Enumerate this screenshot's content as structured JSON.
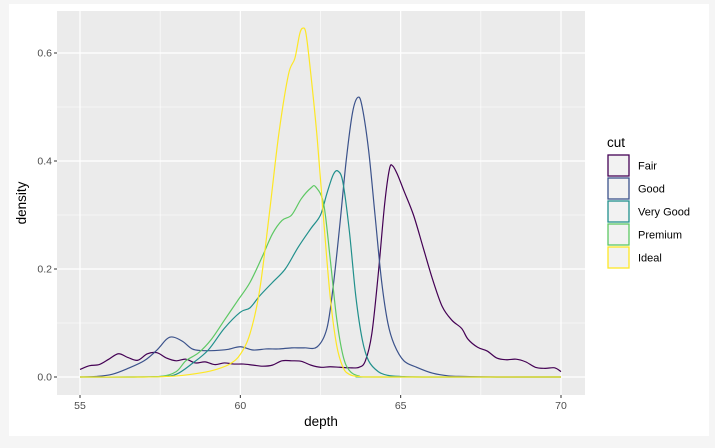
{
  "chart_data": {
    "type": "line",
    "subtype": "density",
    "title": "",
    "xlabel": "depth",
    "ylabel": "density",
    "xlim": [
      54.2,
      70.7
    ],
    "ylim": [
      -0.034,
      0.68
    ],
    "x_ticks": [
      55,
      60,
      65,
      70
    ],
    "x_tick_labels": [
      "55",
      "60",
      "65",
      "70"
    ],
    "y_ticks": [
      0.0,
      0.2,
      0.4,
      0.6
    ],
    "y_tick_labels": [
      "0.0",
      "0.2",
      "0.4",
      "0.6"
    ],
    "x_minor_ticks": [
      57.5,
      62.5,
      67.5
    ],
    "y_minor_ticks": [
      0.1,
      0.3,
      0.5
    ],
    "grid": true,
    "legend_position": "right",
    "legend_title": "cut",
    "series": [
      {
        "name": "Fair",
        "color": "#440154",
        "points": [
          [
            55.0,
            0.014
          ],
          [
            55.3,
            0.021
          ],
          [
            55.6,
            0.023
          ],
          [
            55.9,
            0.033
          ],
          [
            56.2,
            0.043
          ],
          [
            56.5,
            0.036
          ],
          [
            56.8,
            0.031
          ],
          [
            57.1,
            0.043
          ],
          [
            57.4,
            0.045
          ],
          [
            57.7,
            0.035
          ],
          [
            58.0,
            0.03
          ],
          [
            58.3,
            0.033
          ],
          [
            58.6,
            0.026
          ],
          [
            58.9,
            0.028
          ],
          [
            59.2,
            0.023
          ],
          [
            59.5,
            0.026
          ],
          [
            59.8,
            0.024
          ],
          [
            60.1,
            0.024
          ],
          [
            60.4,
            0.022
          ],
          [
            60.7,
            0.02
          ],
          [
            61.0,
            0.022
          ],
          [
            61.3,
            0.03
          ],
          [
            61.6,
            0.03
          ],
          [
            61.9,
            0.029
          ],
          [
            62.2,
            0.022
          ],
          [
            62.5,
            0.018
          ],
          [
            62.8,
            0.019
          ],
          [
            63.1,
            0.018
          ],
          [
            63.4,
            0.017
          ],
          [
            63.7,
            0.018
          ],
          [
            63.9,
            0.03
          ],
          [
            64.1,
            0.08
          ],
          [
            64.3,
            0.19
          ],
          [
            64.5,
            0.32
          ],
          [
            64.65,
            0.385
          ],
          [
            64.75,
            0.391
          ],
          [
            64.9,
            0.375
          ],
          [
            65.1,
            0.345
          ],
          [
            65.4,
            0.3
          ],
          [
            65.7,
            0.24
          ],
          [
            66.0,
            0.18
          ],
          [
            66.3,
            0.13
          ],
          [
            66.6,
            0.105
          ],
          [
            66.9,
            0.09
          ],
          [
            67.1,
            0.07
          ],
          [
            67.4,
            0.055
          ],
          [
            67.7,
            0.048
          ],
          [
            68.0,
            0.035
          ],
          [
            68.3,
            0.032
          ],
          [
            68.6,
            0.033
          ],
          [
            68.9,
            0.028
          ],
          [
            69.2,
            0.018
          ],
          [
            69.5,
            0.016
          ],
          [
            69.8,
            0.017
          ],
          [
            70.0,
            0.01
          ]
        ]
      },
      {
        "name": "Good",
        "color": "#3B528B",
        "points": [
          [
            55.0,
            0.0
          ],
          [
            55.5,
            0.001
          ],
          [
            56.0,
            0.005
          ],
          [
            56.5,
            0.016
          ],
          [
            57.0,
            0.03
          ],
          [
            57.4,
            0.05
          ],
          [
            57.7,
            0.07
          ],
          [
            57.9,
            0.074
          ],
          [
            58.2,
            0.066
          ],
          [
            58.5,
            0.052
          ],
          [
            58.8,
            0.049
          ],
          [
            59.2,
            0.049
          ],
          [
            59.6,
            0.051
          ],
          [
            60.0,
            0.056
          ],
          [
            60.4,
            0.05
          ],
          [
            60.8,
            0.052
          ],
          [
            61.2,
            0.052
          ],
          [
            61.6,
            0.054
          ],
          [
            62.0,
            0.054
          ],
          [
            62.4,
            0.056
          ],
          [
            62.7,
            0.09
          ],
          [
            62.9,
            0.17
          ],
          [
            63.1,
            0.28
          ],
          [
            63.3,
            0.4
          ],
          [
            63.5,
            0.49
          ],
          [
            63.67,
            0.518
          ],
          [
            63.8,
            0.5
          ],
          [
            64.0,
            0.42
          ],
          [
            64.2,
            0.3
          ],
          [
            64.4,
            0.18
          ],
          [
            64.6,
            0.1
          ],
          [
            64.8,
            0.06
          ],
          [
            65.1,
            0.03
          ],
          [
            65.5,
            0.018
          ],
          [
            66.0,
            0.007
          ],
          [
            66.5,
            0.002
          ],
          [
            67.0,
            0.001
          ],
          [
            68.0,
            0.0
          ],
          [
            70.0,
            0.0
          ]
        ]
      },
      {
        "name": "Very Good",
        "color": "#21908C",
        "points": [
          [
            55.0,
            0.0
          ],
          [
            56.5,
            0.0
          ],
          [
            57.5,
            0.001
          ],
          [
            58.0,
            0.005
          ],
          [
            58.5,
            0.025
          ],
          [
            59.0,
            0.05
          ],
          [
            59.5,
            0.09
          ],
          [
            60.0,
            0.12
          ],
          [
            60.3,
            0.128
          ],
          [
            60.6,
            0.15
          ],
          [
            61.0,
            0.175
          ],
          [
            61.4,
            0.2
          ],
          [
            61.8,
            0.24
          ],
          [
            62.2,
            0.275
          ],
          [
            62.5,
            0.3
          ],
          [
            62.7,
            0.34
          ],
          [
            62.9,
            0.375
          ],
          [
            63.05,
            0.381
          ],
          [
            63.2,
            0.36
          ],
          [
            63.4,
            0.27
          ],
          [
            63.6,
            0.15
          ],
          [
            63.8,
            0.07
          ],
          [
            64.0,
            0.03
          ],
          [
            64.3,
            0.01
          ],
          [
            64.6,
            0.003
          ],
          [
            65.0,
            0.001
          ],
          [
            66.0,
            0.0
          ],
          [
            70.0,
            0.0
          ]
        ]
      },
      {
        "name": "Premium",
        "color": "#5DC863",
        "points": [
          [
            55.0,
            0.0
          ],
          [
            56.5,
            0.0
          ],
          [
            57.5,
            0.001
          ],
          [
            58.0,
            0.01
          ],
          [
            58.3,
            0.03
          ],
          [
            58.7,
            0.045
          ],
          [
            59.1,
            0.07
          ],
          [
            59.5,
            0.105
          ],
          [
            59.9,
            0.14
          ],
          [
            60.3,
            0.175
          ],
          [
            60.7,
            0.225
          ],
          [
            61.0,
            0.265
          ],
          [
            61.3,
            0.29
          ],
          [
            61.6,
            0.3
          ],
          [
            61.9,
            0.33
          ],
          [
            62.2,
            0.35
          ],
          [
            62.35,
            0.352
          ],
          [
            62.6,
            0.32
          ],
          [
            62.8,
            0.22
          ],
          [
            63.0,
            0.11
          ],
          [
            63.2,
            0.04
          ],
          [
            63.4,
            0.012
          ],
          [
            63.7,
            0.002
          ],
          [
            64.2,
            0.0
          ],
          [
            70.0,
            0.0
          ]
        ]
      },
      {
        "name": "Ideal",
        "color": "#FDE725",
        "points": [
          [
            55.0,
            0.0
          ],
          [
            57.0,
            0.0
          ],
          [
            58.0,
            0.002
          ],
          [
            58.8,
            0.008
          ],
          [
            59.3,
            0.015
          ],
          [
            59.7,
            0.025
          ],
          [
            60.0,
            0.042
          ],
          [
            60.3,
            0.08
          ],
          [
            60.6,
            0.16
          ],
          [
            60.9,
            0.3
          ],
          [
            61.2,
            0.45
          ],
          [
            61.5,
            0.56
          ],
          [
            61.7,
            0.59
          ],
          [
            61.85,
            0.635
          ],
          [
            61.95,
            0.646
          ],
          [
            62.05,
            0.635
          ],
          [
            62.2,
            0.56
          ],
          [
            62.4,
            0.44
          ],
          [
            62.6,
            0.29
          ],
          [
            62.8,
            0.15
          ],
          [
            63.0,
            0.06
          ],
          [
            63.2,
            0.018
          ],
          [
            63.4,
            0.005
          ],
          [
            63.7,
            0.001
          ],
          [
            64.5,
            0.0
          ],
          [
            70.0,
            0.0
          ]
        ]
      }
    ]
  },
  "axes": {
    "xlabel": "depth",
    "ylabel": "density"
  },
  "legend": {
    "title": "cut",
    "items": [
      {
        "label": "Fair",
        "color": "#440154"
      },
      {
        "label": "Good",
        "color": "#3B528B"
      },
      {
        "label": "Very Good",
        "color": "#21908C"
      },
      {
        "label": "Premium",
        "color": "#5DC863"
      },
      {
        "label": "Ideal",
        "color": "#FDE725"
      }
    ]
  },
  "colors": {
    "panel_bg": "#EBEBEB",
    "grid": "#FFFFFF",
    "page_bg": "#F5F5F5",
    "card_bg": "#FFFFFF"
  }
}
